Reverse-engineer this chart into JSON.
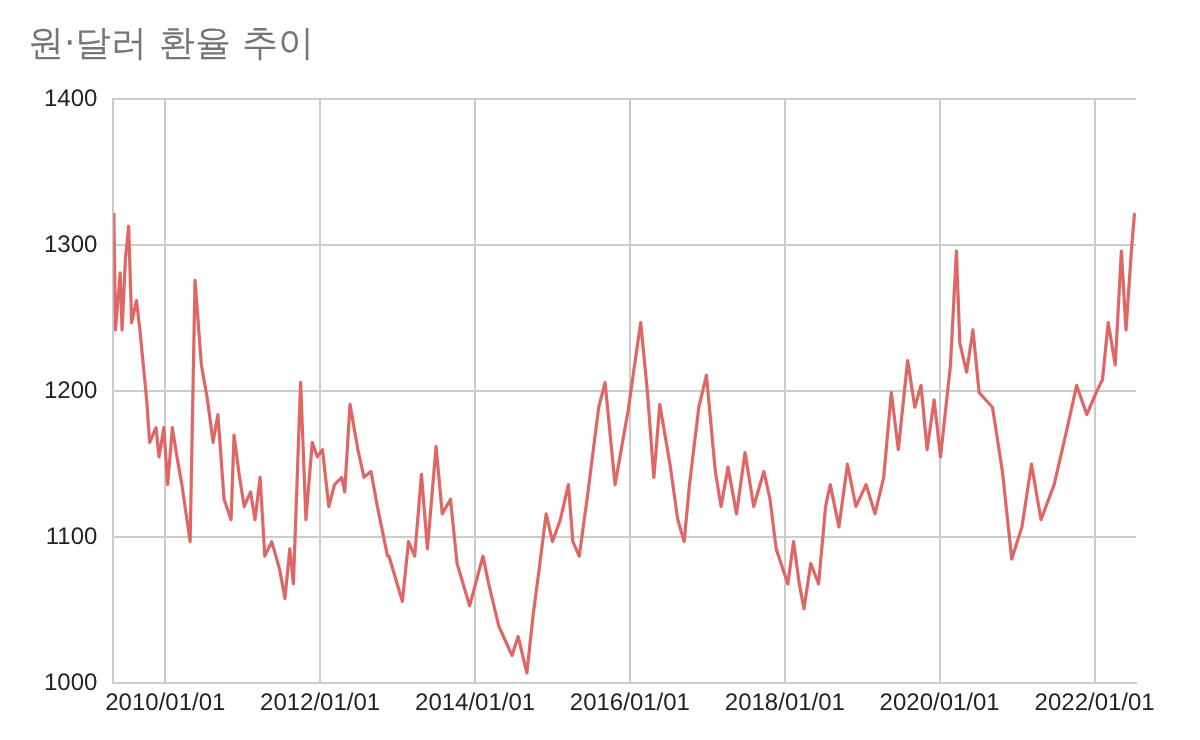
{
  "chart_data": {
    "type": "line",
    "title": "원·달러 환율 추이",
    "x": [
      "2009-05-03",
      "2009-05-11",
      "2009-06-02",
      "2009-06-11",
      "2009-06-27",
      "2009-07-12",
      "2009-07-26",
      "2009-08-18",
      "2009-09-03",
      "2009-10-05",
      "2009-10-19",
      "2009-11-18",
      "2009-12-02",
      "2009-12-25",
      "2010-01-12",
      "2010-02-03",
      "2010-02-25",
      "2010-03-20",
      "2010-04-28",
      "2010-05-21",
      "2010-06-20",
      "2010-07-19",
      "2010-08-14",
      "2010-09-06",
      "2010-10-05",
      "2010-11-07",
      "2010-11-21",
      "2010-12-17",
      "2011-01-08",
      "2011-02-07",
      "2011-02-28",
      "2011-03-24",
      "2011-04-15",
      "2011-05-18",
      "2011-06-24",
      "2011-07-19",
      "2011-08-11",
      "2011-08-28",
      "2011-10-01",
      "2011-10-26",
      "2011-11-25",
      "2011-12-19",
      "2012-01-12",
      "2012-02-11",
      "2012-03-09",
      "2012-04-12",
      "2012-04-26",
      "2012-05-21",
      "2012-06-27",
      "2012-07-26",
      "2012-08-28",
      "2012-09-27",
      "2012-11-14",
      "2012-11-21",
      "2013-01-23",
      "2013-02-21",
      "2013-03-22",
      "2013-04-23",
      "2013-05-21",
      "2013-07-01",
      "2013-07-30",
      "2013-09-07",
      "2013-10-08",
      "2013-12-06",
      "2014-02-07",
      "2014-03-06",
      "2014-04-23",
      "2014-06-24",
      "2014-07-23",
      "2014-09-02",
      "2014-10-01",
      "2014-10-30",
      "2014-12-02",
      "2015-01-01",
      "2015-02-07",
      "2015-03-17",
      "2015-04-07",
      "2015-05-07",
      "2015-06-13",
      "2015-08-07",
      "2015-09-06",
      "2015-10-23",
      "2015-12-24",
      "2016-01-23",
      "2016-02-21",
      "2016-03-24",
      "2016-04-23",
      "2016-05-21",
      "2016-07-08",
      "2016-08-14",
      "2016-09-13",
      "2016-10-08",
      "2016-11-21",
      "2016-12-27",
      "2017-02-07",
      "2017-03-06",
      "2017-04-08",
      "2017-05-18",
      "2017-06-27",
      "2017-08-07",
      "2017-09-24",
      "2017-10-23",
      "2017-11-21",
      "2018-01-15",
      "2018-02-11",
      "2018-03-10",
      "2018-04-01",
      "2018-05-03",
      "2018-06-09",
      "2018-07-12",
      "2018-08-03",
      "2018-09-13",
      "2018-10-23",
      "2018-12-02",
      "2019-01-19",
      "2019-03-02",
      "2019-04-12",
      "2019-05-18",
      "2019-06-20",
      "2019-08-03",
      "2019-09-06",
      "2019-10-05",
      "2019-11-03",
      "2019-12-06",
      "2020-01-05",
      "2020-02-21",
      "2020-03-20",
      "2020-04-05",
      "2020-05-07",
      "2020-06-06",
      "2020-07-05",
      "2020-09-06",
      "2020-10-23",
      "2020-12-06",
      "2021-01-23",
      "2021-03-09",
      "2021-04-23",
      "2021-06-24",
      "2021-08-25",
      "2021-10-08",
      "2021-11-25",
      "2022-01-08",
      "2022-02-07",
      "2022-03-06",
      "2022-04-08",
      "2022-05-07",
      "2022-05-29",
      "2022-06-24",
      "2022-07-08"
    ],
    "series": [
      {
        "color": "#e06666",
        "values": [
          1322,
          1242,
          1281,
          1242,
          1291,
          1313,
          1247,
          1262,
          1242,
          1194,
          1165,
          1175,
          1155,
          1175,
          1136,
          1175,
          1155,
          1136,
          1097,
          1276,
          1218,
          1194,
          1165,
          1184,
          1126,
          1112,
          1170,
          1141,
          1121,
          1131,
          1112,
          1141,
          1087,
          1097,
          1078,
          1058,
          1092,
          1068,
          1206,
          1112,
          1165,
          1155,
          1160,
          1121,
          1136,
          1141,
          1131,
          1191,
          1160,
          1141,
          1145,
          1121,
          1087,
          1087,
          1056,
          1097,
          1087,
          1143,
          1092,
          1162,
          1116,
          1126,
          1082,
          1053,
          1087,
          1068,
          1039,
          1019,
          1032,
          1007,
          1046,
          1078,
          1116,
          1097,
          1112,
          1136,
          1097,
          1087,
          1126,
          1189,
          1206,
          1136,
          1187,
          1218,
          1247,
          1199,
          1141,
          1191,
          1150,
          1112,
          1097,
          1136,
          1189,
          1211,
          1145,
          1121,
          1148,
          1116,
          1158,
          1121,
          1145,
          1126,
          1092,
          1068,
          1097,
          1068,
          1051,
          1082,
          1068,
          1121,
          1136,
          1107,
          1150,
          1121,
          1136,
          1116,
          1141,
          1199,
          1160,
          1221,
          1189,
          1204,
          1160,
          1194,
          1155,
          1218,
          1296,
          1233,
          1213,
          1242,
          1199,
          1189,
          1145,
          1085,
          1107,
          1150,
          1112,
          1136,
          1175,
          1204,
          1184,
          1199,
          1208,
          1247,
          1218,
          1296,
          1242,
          1298,
          1322
        ]
      }
    ],
    "xlim": [
      "2009-05-01",
      "2022-07-15"
    ],
    "xticks": [
      {
        "value": "2010-01-01",
        "label": "2010/01/01"
      },
      {
        "value": "2012-01-01",
        "label": "2012/01/01"
      },
      {
        "value": "2014-01-01",
        "label": "2014/01/01"
      },
      {
        "value": "2016-01-01",
        "label": "2016/01/01"
      },
      {
        "value": "2018-01-01",
        "label": "2018/01/01"
      },
      {
        "value": "2020-01-01",
        "label": "2020/01/01"
      },
      {
        "value": "2022-01-01",
        "label": "2022/01/01"
      }
    ],
    "ylim": [
      1000,
      1400
    ],
    "yticks": [
      1000,
      1100,
      1200,
      1300,
      1400
    ],
    "grid": true,
    "legend": false,
    "marker": "none",
    "line_style": "solid"
  }
}
